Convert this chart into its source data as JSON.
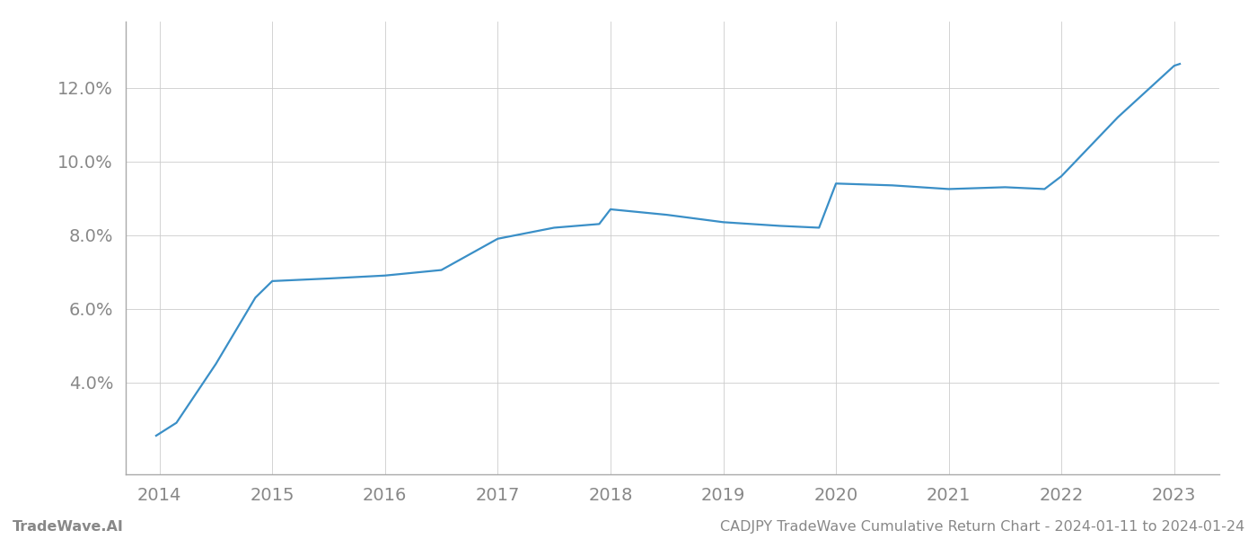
{
  "x_years": [
    2013.97,
    2014.15,
    2014.5,
    2014.85,
    2015.0,
    2015.5,
    2016.0,
    2016.5,
    2017.0,
    2017.5,
    2017.9,
    2018.0,
    2018.5,
    2019.0,
    2019.5,
    2019.85,
    2020.0,
    2020.5,
    2021.0,
    2021.5,
    2021.85,
    2022.0,
    2022.5,
    2023.0,
    2023.05
  ],
  "y_values": [
    2.55,
    2.9,
    4.5,
    6.3,
    6.75,
    6.82,
    6.9,
    7.05,
    7.9,
    8.2,
    8.3,
    8.7,
    8.55,
    8.35,
    8.25,
    8.2,
    9.4,
    9.35,
    9.25,
    9.3,
    9.25,
    9.6,
    11.2,
    12.6,
    12.65
  ],
  "line_color": "#3a8fc7",
  "background_color": "#ffffff",
  "grid_color": "#cccccc",
  "spine_color": "#aaaaaa",
  "tick_color": "#888888",
  "footer_left": "TradeWave.AI",
  "footer_right": "CADJPY TradeWave Cumulative Return Chart - 2024-01-11 to 2024-01-24",
  "x_ticks": [
    2014,
    2015,
    2016,
    2017,
    2018,
    2019,
    2020,
    2021,
    2022,
    2023
  ],
  "ylim": [
    1.5,
    13.8
  ],
  "xlim": [
    2013.7,
    2023.4
  ],
  "y_ticks": [
    4.0,
    6.0,
    8.0,
    10.0,
    12.0
  ],
  "line_width": 1.6,
  "tick_fontsize": 14,
  "footer_fontsize": 11.5
}
